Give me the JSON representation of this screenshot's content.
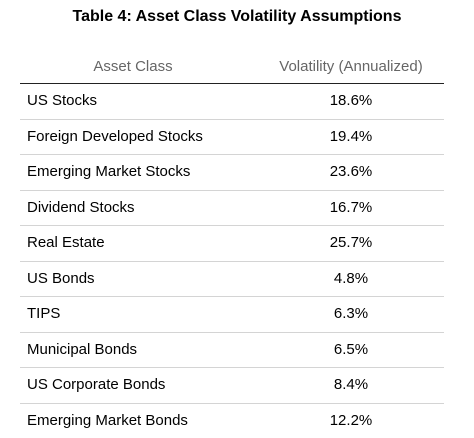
{
  "table": {
    "title": "Table 4: Asset Class Volatility Assumptions",
    "headers": {
      "asset_class": "Asset Class",
      "volatility": "Volatility (Annualized)"
    },
    "rows": [
      {
        "asset_class": "US Stocks",
        "volatility": "18.6%"
      },
      {
        "asset_class": "Foreign Developed Stocks",
        "volatility": "19.4%"
      },
      {
        "asset_class": "Emerging Market Stocks",
        "volatility": "23.6%"
      },
      {
        "asset_class": "Dividend Stocks",
        "volatility": "16.7%"
      },
      {
        "asset_class": "Real Estate",
        "volatility": "25.7%"
      },
      {
        "asset_class": "US Bonds",
        "volatility": "4.8%"
      },
      {
        "asset_class": "TIPS",
        "volatility": "6.3%"
      },
      {
        "asset_class": "Municipal Bonds",
        "volatility": "6.5%"
      },
      {
        "asset_class": "US Corporate Bonds",
        "volatility": "8.4%"
      },
      {
        "asset_class": "Emerging Market Bonds",
        "volatility": "12.2%"
      }
    ]
  }
}
